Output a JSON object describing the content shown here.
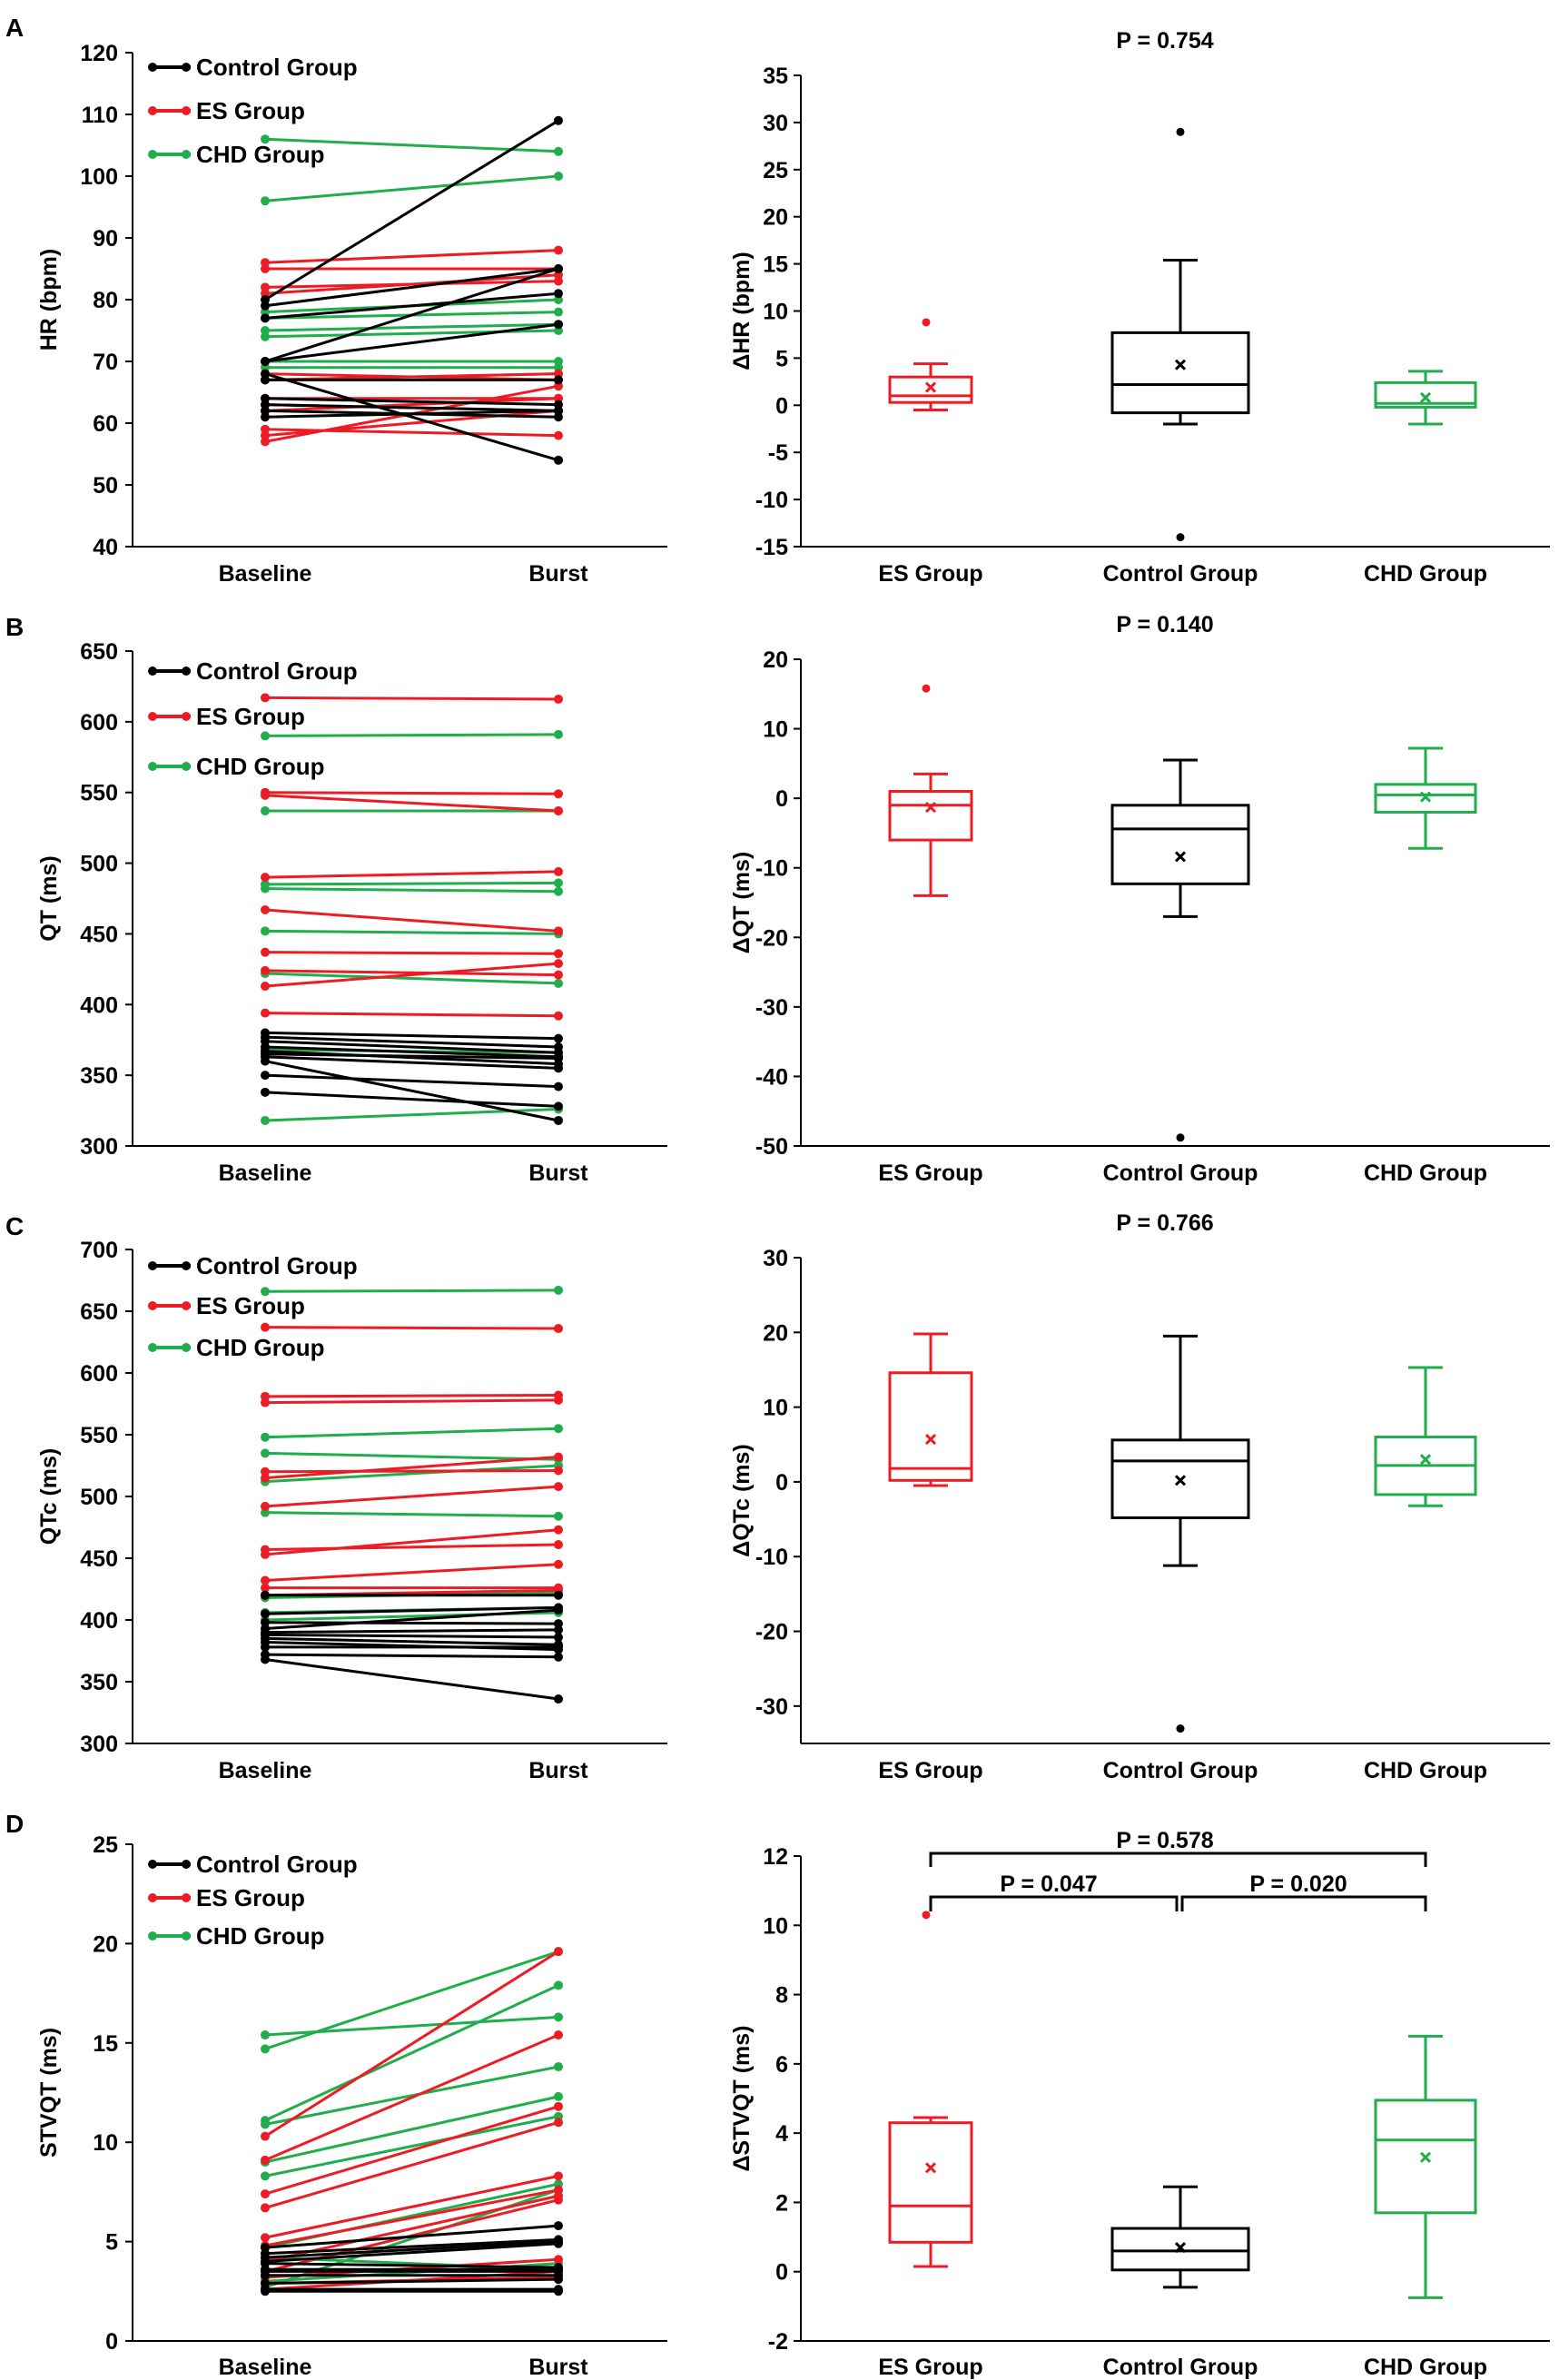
{
  "figure": {
    "panels": [
      "A",
      "B",
      "C",
      "D"
    ],
    "colors": {
      "control": "#000000",
      "es": "#ed1c24",
      "chd": "#1fae4b"
    }
  },
  "chart_data": [
    {
      "panel": "A",
      "type": "line",
      "ylabel": "HR (bpm)",
      "categories": [
        "Baseline",
        "Burst"
      ],
      "ylim": [
        40,
        120
      ],
      "yticks": [
        40,
        50,
        60,
        70,
        80,
        90,
        100,
        110,
        120
      ],
      "legend": [
        "Control Group",
        "ES Group",
        "CHD Group"
      ],
      "legend_position": "top-left",
      "series": [
        {
          "group": "Control Group",
          "color_key": "control",
          "pairs": [
            [
              80,
              109
            ],
            [
              79,
              85
            ],
            [
              77,
              81
            ],
            [
              70,
              76
            ],
            [
              70,
              85
            ],
            [
              68,
              54
            ],
            [
              67,
              67
            ],
            [
              64,
              63
            ],
            [
              63,
              62
            ],
            [
              62,
              61
            ],
            [
              61,
              62
            ]
          ]
        },
        {
          "group": "ES Group",
          "color_key": "es",
          "pairs": [
            [
              86,
              88
            ],
            [
              85,
              85
            ],
            [
              82,
              83
            ],
            [
              81,
              84
            ],
            [
              68,
              67
            ],
            [
              67,
              68
            ],
            [
              64,
              64
            ],
            [
              63,
              62
            ],
            [
              62,
              64
            ],
            [
              59,
              58
            ],
            [
              58,
              62
            ],
            [
              57,
              66
            ]
          ]
        },
        {
          "group": "CHD Group",
          "color_key": "chd",
          "pairs": [
            [
              106,
              104
            ],
            [
              96,
              100
            ],
            [
              78,
              80
            ],
            [
              77,
              78
            ],
            [
              75,
              76
            ],
            [
              74,
              75
            ],
            [
              70,
              70
            ],
            [
              69,
              69
            ],
            [
              67,
              68
            ]
          ]
        }
      ]
    },
    {
      "panel": "A",
      "type": "box",
      "ylabel": "ΔHR (bpm)",
      "annotations": [
        "P = 0.754"
      ],
      "categories": [
        "ES Group",
        "Control Group",
        "CHD Group"
      ],
      "ylim": [
        -15,
        35
      ],
      "yticks": [
        -15,
        -10,
        -5,
        0,
        5,
        10,
        15,
        20,
        25,
        30,
        35
      ],
      "boxes": [
        {
          "group": "ES Group",
          "color_key": "es",
          "whisker_low": -0.5,
          "q1": 0.3,
          "median": 1.0,
          "q3": 3.0,
          "whisker_high": 4.4,
          "mean": 1.9,
          "outliers": [
            8.8
          ]
        },
        {
          "group": "Control Group",
          "color_key": "control",
          "whisker_low": -2.0,
          "q1": -0.8,
          "median": 2.2,
          "q3": 7.7,
          "whisker_high": 15.4,
          "mean": 4.3,
          "outliers": [
            29.0,
            -14.0
          ]
        },
        {
          "group": "CHD Group",
          "color_key": "chd",
          "whisker_low": -2.0,
          "q1": -0.2,
          "median": 0.2,
          "q3": 2.4,
          "whisker_high": 3.6,
          "mean": 0.8,
          "outliers": []
        }
      ]
    },
    {
      "panel": "B",
      "type": "line",
      "ylabel": "QT (ms)",
      "categories": [
        "Baseline",
        "Burst"
      ],
      "ylim": [
        300,
        650
      ],
      "yticks": [
        300,
        350,
        400,
        450,
        500,
        550,
        600,
        650
      ],
      "legend": [
        "Control Group",
        "ES Group",
        "CHD Group"
      ],
      "legend_position": "top-left",
      "series": [
        {
          "group": "Control Group",
          "color_key": "control",
          "pairs": [
            [
              380,
              376
            ],
            [
              377,
              370
            ],
            [
              374,
              366
            ],
            [
              370,
              363
            ],
            [
              367,
              358
            ],
            [
              365,
              362
            ],
            [
              363,
              355
            ],
            [
              360,
              318
            ],
            [
              350,
              342
            ],
            [
              338,
              328
            ]
          ]
        },
        {
          "group": "ES Group",
          "color_key": "es",
          "pairs": [
            [
              617,
              616
            ],
            [
              550,
              549
            ],
            [
              548,
              537
            ],
            [
              490,
              494
            ],
            [
              467,
              452
            ],
            [
              437,
              436
            ],
            [
              424,
              421
            ],
            [
              413,
              429
            ],
            [
              394,
              392
            ]
          ]
        },
        {
          "group": "CHD Group",
          "color_key": "chd",
          "pairs": [
            [
              590,
              591
            ],
            [
              537,
              537
            ],
            [
              485,
              486
            ],
            [
              482,
              480
            ],
            [
              452,
              450
            ],
            [
              422,
              415
            ],
            [
              368,
              366
            ],
            [
              318,
              326
            ]
          ]
        }
      ]
    },
    {
      "panel": "B",
      "type": "box",
      "ylabel": "ΔQT (ms)",
      "annotations": [
        "P = 0.140"
      ],
      "categories": [
        "ES Group",
        "Control Group",
        "CHD Group"
      ],
      "ylim": [
        -50,
        20
      ],
      "yticks": [
        -50,
        -40,
        -30,
        -20,
        -10,
        0,
        10,
        20
      ],
      "boxes": [
        {
          "group": "ES Group",
          "color_key": "es",
          "whisker_low": -14,
          "q1": -6,
          "median": -1,
          "q3": 1,
          "whisker_high": 3.5,
          "mean": -1.3,
          "outliers": [
            15.8
          ]
        },
        {
          "group": "Control Group",
          "color_key": "control",
          "whisker_low": -17,
          "q1": -12.3,
          "median": -4.4,
          "q3": -1,
          "whisker_high": 5.5,
          "mean": -8.4,
          "outliers": [
            -48.8
          ]
        },
        {
          "group": "CHD Group",
          "color_key": "chd",
          "whisker_low": -7.2,
          "q1": -2,
          "median": 0.5,
          "q3": 2,
          "whisker_high": 7.2,
          "mean": 0.2,
          "outliers": []
        }
      ]
    },
    {
      "panel": "C",
      "type": "line",
      "ylabel": "QTc (ms)",
      "categories": [
        "Baseline",
        "Burst"
      ],
      "ylim": [
        300,
        700
      ],
      "yticks": [
        300,
        350,
        400,
        450,
        500,
        550,
        600,
        650,
        700
      ],
      "legend": [
        "Control Group",
        "ES Group",
        "CHD Group"
      ],
      "legend_position": "top-left",
      "series": [
        {
          "group": "Control Group",
          "color_key": "control",
          "pairs": [
            [
              420,
              420
            ],
            [
              405,
              410
            ],
            [
              398,
              397
            ],
            [
              393,
              408
            ],
            [
              390,
              392
            ],
            [
              388,
              386
            ],
            [
              385,
              380
            ],
            [
              382,
              376
            ],
            [
              378,
              378
            ],
            [
              372,
              370
            ],
            [
              368,
              336
            ]
          ]
        },
        {
          "group": "ES Group",
          "color_key": "es",
          "pairs": [
            [
              637,
              636
            ],
            [
              581,
              582
            ],
            [
              576,
              578
            ],
            [
              520,
              521
            ],
            [
              515,
              532
            ],
            [
              492,
              508
            ],
            [
              457,
              461
            ],
            [
              453,
              473
            ],
            [
              432,
              445
            ],
            [
              426,
              426
            ],
            [
              420,
              424
            ]
          ]
        },
        {
          "group": "CHD Group",
          "color_key": "chd",
          "pairs": [
            [
              666,
              667
            ],
            [
              548,
              555
            ],
            [
              535,
              530
            ],
            [
              512,
              525
            ],
            [
              487,
              484
            ],
            [
              418,
              422
            ],
            [
              406,
              410
            ],
            [
              400,
              406
            ]
          ]
        }
      ]
    },
    {
      "panel": "C",
      "type": "box",
      "ylabel": "ΔQTc (ms)",
      "annotations": [
        "P = 0.766"
      ],
      "categories": [
        "ES Group",
        "Control Group",
        "CHD Group"
      ],
      "ylim": [
        -35,
        30
      ],
      "yticks": [
        -30,
        -20,
        -10,
        0,
        10,
        20,
        30
      ],
      "boxes": [
        {
          "group": "ES Group",
          "color_key": "es",
          "whisker_low": -0.5,
          "q1": 0.2,
          "median": 1.8,
          "q3": 14.6,
          "whisker_high": 19.8,
          "mean": 5.7,
          "outliers": []
        },
        {
          "group": "Control Group",
          "color_key": "control",
          "whisker_low": -11.2,
          "q1": -4.8,
          "median": 2.8,
          "q3": 5.6,
          "whisker_high": 19.5,
          "mean": 0.2,
          "outliers": [
            -33.0
          ]
        },
        {
          "group": "CHD Group",
          "color_key": "chd",
          "whisker_low": -3.2,
          "q1": -1.7,
          "median": 2.2,
          "q3": 6.0,
          "whisker_high": 15.3,
          "mean": 3.0,
          "outliers": []
        }
      ]
    },
    {
      "panel": "D",
      "type": "line",
      "ylabel": "STVQT (ms)",
      "categories": [
        "Baseline",
        "Burst"
      ],
      "ylim": [
        0,
        25
      ],
      "yticks": [
        0,
        5,
        10,
        15,
        20,
        25
      ],
      "legend": [
        "Control Group",
        "ES Group",
        "CHD Group"
      ],
      "legend_position": "top-left",
      "series": [
        {
          "group": "Control Group",
          "color_key": "control",
          "pairs": [
            [
              4.7,
              5.8
            ],
            [
              4.4,
              5.1
            ],
            [
              4.2,
              5.0
            ],
            [
              4.0,
              4.9
            ],
            [
              3.9,
              3.7
            ],
            [
              3.6,
              3.6
            ],
            [
              3.5,
              3.5
            ],
            [
              3.3,
              3.3
            ],
            [
              2.9,
              3.1
            ],
            [
              2.5,
              2.5
            ],
            [
              2.6,
              2.6
            ]
          ]
        },
        {
          "group": "ES Group",
          "color_key": "es",
          "pairs": [
            [
              10.3,
              19.6
            ],
            [
              9.1,
              15.4
            ],
            [
              7.4,
              11.8
            ],
            [
              6.7,
              11.0
            ],
            [
              5.2,
              8.3
            ],
            [
              4.8,
              7.6
            ],
            [
              4.0,
              7.3
            ],
            [
              3.5,
              7.1
            ],
            [
              3.2,
              4.1
            ],
            [
              2.9,
              3.2
            ],
            [
              2.6,
              3.5
            ]
          ]
        },
        {
          "group": "CHD Group",
          "color_key": "chd",
          "pairs": [
            [
              15.4,
              16.3
            ],
            [
              14.7,
              19.6
            ],
            [
              11.1,
              17.9
            ],
            [
              10.9,
              13.8
            ],
            [
              9.0,
              12.3
            ],
            [
              8.3,
              11.3
            ],
            [
              4.7,
              7.9
            ],
            [
              4.2,
              3.6
            ],
            [
              3.0,
              3.9
            ],
            [
              2.7,
              7.6
            ]
          ]
        }
      ]
    },
    {
      "panel": "D",
      "type": "box",
      "ylabel": "ΔSTVQT (ms)",
      "annotations": [
        "P = 0.578",
        "P = 0.047",
        "P = 0.020"
      ],
      "categories": [
        "ES Group",
        "Control Group",
        "CHD Group"
      ],
      "ylim": [
        -2,
        12
      ],
      "yticks": [
        -2,
        0,
        2,
        4,
        6,
        8,
        10,
        12
      ],
      "boxes": [
        {
          "group": "ES Group",
          "color_key": "es",
          "whisker_low": 0.15,
          "q1": 0.85,
          "median": 1.9,
          "q3": 4.3,
          "whisker_high": 4.45,
          "mean": 3.0,
          "outliers": [
            10.3
          ]
        },
        {
          "group": "Control Group",
          "color_key": "control",
          "whisker_low": -0.45,
          "q1": 0.05,
          "median": 0.6,
          "q3": 1.25,
          "whisker_high": 2.45,
          "mean": 0.7,
          "outliers": []
        },
        {
          "group": "CHD Group",
          "color_key": "chd",
          "whisker_low": -0.75,
          "q1": 1.7,
          "median": 3.8,
          "q3": 4.95,
          "whisker_high": 6.8,
          "mean": 3.3,
          "outliers": []
        }
      ]
    }
  ]
}
